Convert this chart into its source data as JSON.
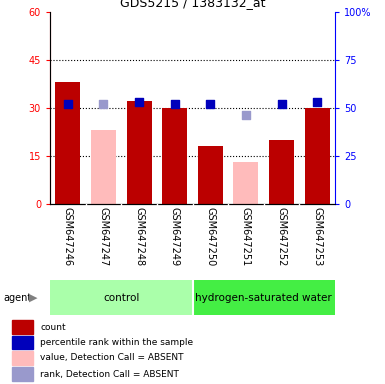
{
  "title": "GDS5215 / 1383132_at",
  "samples": [
    "GSM647246",
    "GSM647247",
    "GSM647248",
    "GSM647249",
    "GSM647250",
    "GSM647251",
    "GSM647252",
    "GSM647253"
  ],
  "ylim_left": [
    0,
    60
  ],
  "ylim_right": [
    0,
    100
  ],
  "yticks_left": [
    0,
    15,
    30,
    45,
    60
  ],
  "ytick_labels_left": [
    "0",
    "15",
    "30",
    "45",
    "60"
  ],
  "yticks_right": [
    0,
    25,
    50,
    75,
    100
  ],
  "ytick_labels_right": [
    "0",
    "25",
    "50",
    "75",
    "100%"
  ],
  "red_bars": [
    38,
    0,
    32,
    30,
    18,
    0,
    20,
    30
  ],
  "pink_bars": [
    0,
    23,
    0,
    0,
    0,
    13,
    0,
    0
  ],
  "blue_squares_right": [
    52,
    0,
    53,
    52,
    52,
    0,
    52,
    53
  ],
  "lavender_squares_right": [
    0,
    52,
    0,
    0,
    0,
    46,
    0,
    0
  ],
  "absent_mask": [
    false,
    true,
    false,
    false,
    false,
    true,
    false,
    false
  ],
  "bar_width": 0.7,
  "red_color": "#bb0000",
  "pink_color": "#ffbbbb",
  "blue_color": "#0000bb",
  "lavender_color": "#9999cc",
  "control_color": "#aaffaa",
  "hw_color": "#44ee44",
  "label_bg": "#cccccc",
  "bg_color": "#ffffff"
}
